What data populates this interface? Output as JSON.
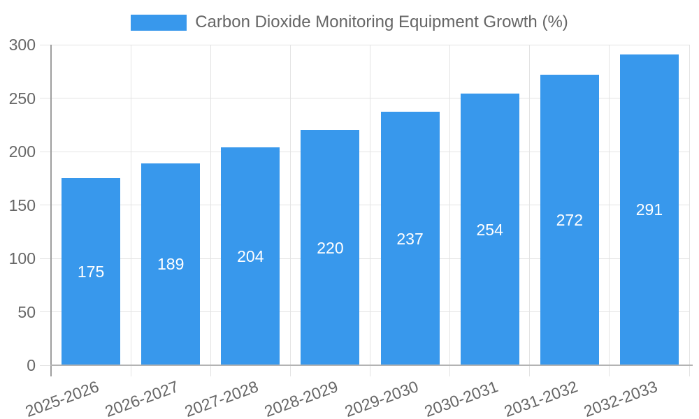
{
  "chart_data": {
    "type": "bar",
    "title": "Carbon Dioxide Monitoring Equipment Growth (%)",
    "categories": [
      "2025-2026",
      "2026-2027",
      "2027-2028",
      "2028-2029",
      "2029-2030",
      "2030-2031",
      "2031-2032",
      "2032-2033"
    ],
    "values": [
      175,
      189,
      204,
      220,
      237,
      254,
      272,
      291
    ],
    "xlabel": "",
    "ylabel": "",
    "ylim": [
      0,
      300
    ],
    "yticks": [
      0,
      50,
      100,
      150,
      200,
      250,
      300
    ],
    "grid": true,
    "legend_position": "top",
    "x_label_rotation_deg": -20,
    "bar_color": "#3898ec",
    "value_label_color": "#ffffff",
    "axis_text_color": "#666666",
    "grid_color": "#e3e3e3",
    "axis_line_color": "#9e9e9e",
    "zero_line_color": "#b3b3b3",
    "background_color": "#ffffff"
  }
}
